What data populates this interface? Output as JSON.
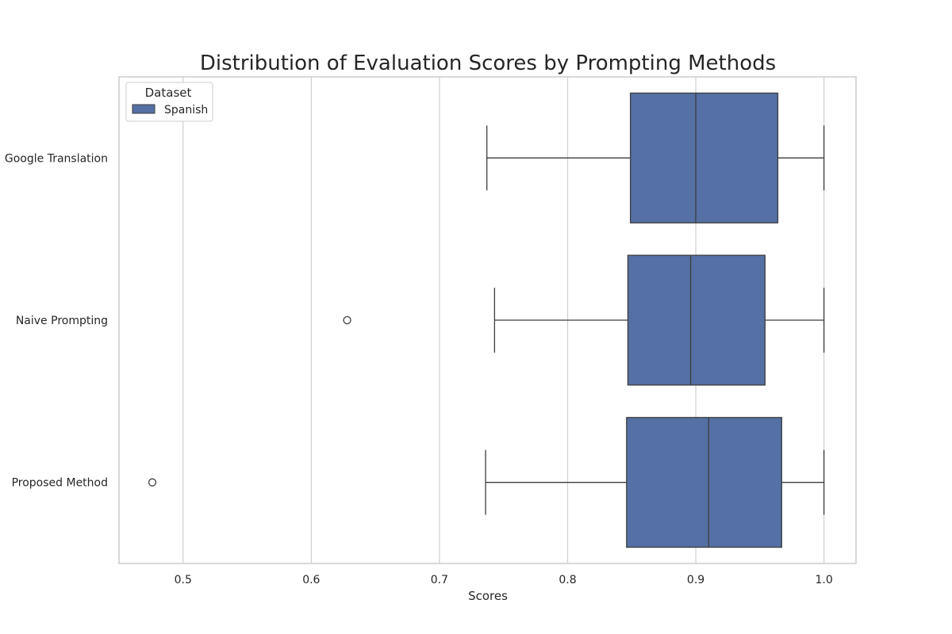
{
  "chart_data": {
    "type": "box",
    "orientation": "horizontal",
    "title": "Distribution of Evaluation Scores by Prompting Methods",
    "xlabel": "Scores",
    "ylabel": "",
    "xlim": [
      0.45,
      1.025
    ],
    "xticks": [
      0.5,
      0.6,
      0.7,
      0.8,
      0.9,
      1.0
    ],
    "xtick_labels": [
      "0.5",
      "0.6",
      "0.7",
      "0.8",
      "0.9",
      "1.0"
    ],
    "grid": "vertical",
    "legend": {
      "title": "Dataset",
      "placement": "top-left",
      "entries": [
        {
          "label": "Spanish",
          "color": "#5470a4"
        }
      ]
    },
    "categories": [
      "Google Translation",
      "Naive Prompting",
      "Proposed Method"
    ],
    "series": [
      {
        "name": "Spanish",
        "color": "#5470a4",
        "boxes": [
          {
            "category": "Google Translation",
            "whisker_low": 0.737,
            "q1": 0.849,
            "median": 0.9,
            "q3": 0.964,
            "whisker_high": 1.0,
            "outliers": []
          },
          {
            "category": "Naive Prompting",
            "whisker_low": 0.743,
            "q1": 0.847,
            "median": 0.896,
            "q3": 0.954,
            "whisker_high": 1.0,
            "outliers": [
              0.628
            ]
          },
          {
            "category": "Proposed Method",
            "whisker_low": 0.736,
            "q1": 0.846,
            "median": 0.91,
            "q3": 0.967,
            "whisker_high": 1.0,
            "outliers": [
              0.476
            ]
          }
        ]
      }
    ]
  },
  "colors": {
    "box_fill": "#5470a4",
    "line": "#3d3d3d",
    "grid": "#d3d3d3",
    "frame": "#cccccc"
  }
}
